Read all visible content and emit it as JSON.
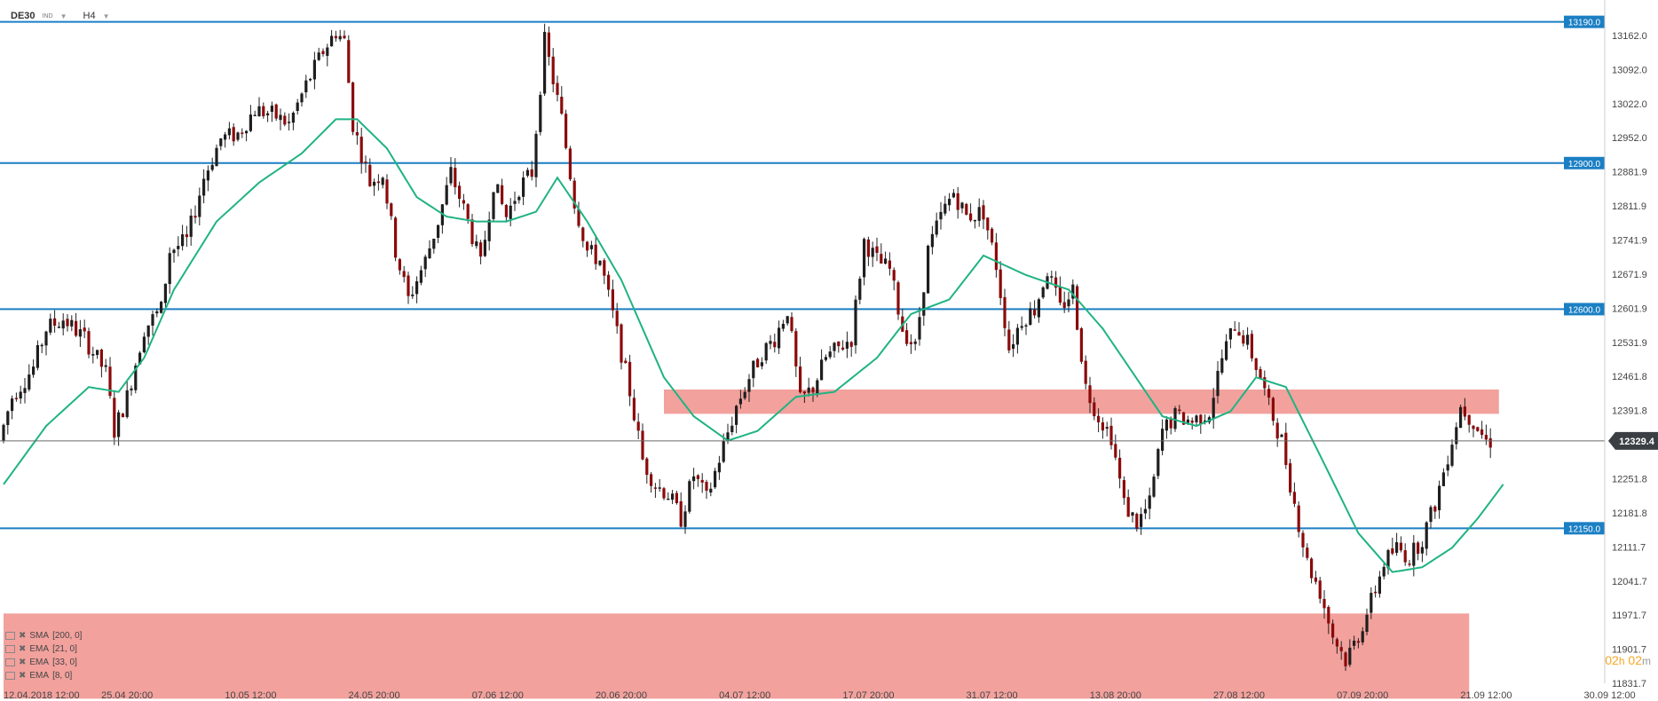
{
  "header": {
    "symbol": "DE30",
    "type": "IND",
    "timeframe": "H4"
  },
  "indicators": [
    {
      "label": "SMA",
      "params": "[200, 0]"
    },
    {
      "label": "EMA",
      "params": "[21, 0]"
    },
    {
      "label": "EMA",
      "params": "[33, 0]"
    },
    {
      "label": "EMA",
      "params": "[8, 0]"
    }
  ],
  "timer": {
    "hours": "02",
    "h": "h",
    "minutes": "02",
    "m": "m"
  },
  "colors": {
    "up": "#1e1e1e",
    "down": "#8b0a0a",
    "ema": "#1fb383",
    "level": "#1b7fc4",
    "zone": "#f0908c",
    "price": "#555555"
  },
  "chart_data": {
    "type": "candlestick",
    "timeframe": "H4",
    "ylim": [
      11796.8,
      13224.0
    ],
    "y_ticks": [
      "13162.0",
      "13092.0",
      "13022.0",
      "12952.0",
      "12881.9",
      "12811.9",
      "12741.9",
      "12671.9",
      "12601.9",
      "12531.9",
      "12461.8",
      "12391.8",
      "12251.8",
      "12181.8",
      "12111.7",
      "12041.7",
      "11971.7",
      "11901.7",
      "11831.7"
    ],
    "x_ticks": [
      {
        "label": "12.04.2018  12:00",
        "i": 0
      },
      {
        "label": "25.04  20:00",
        "i": 29
      },
      {
        "label": "10.05  12:00",
        "i": 58
      },
      {
        "label": "24.05  20:00",
        "i": 87
      },
      {
        "label": "07.06  12:00",
        "i": 116
      },
      {
        "label": "20.06  20:00",
        "i": 145
      },
      {
        "label": "04.07  12:00",
        "i": 174
      },
      {
        "label": "17.07  20:00",
        "i": 203
      },
      {
        "label": "31.07  12:00",
        "i": 232
      },
      {
        "label": "13.08  20:00",
        "i": 261
      },
      {
        "label": "27.08  12:00",
        "i": 290
      },
      {
        "label": "07.09  20:00",
        "i": 319
      },
      {
        "label": "21.09  12:00",
        "i": 348
      },
      {
        "label": "30.09  12:00",
        "i": 377
      }
    ],
    "levels": [
      13190.0,
      12900.0,
      12600.0,
      12150.0
    ],
    "level_labels": [
      "13190.0",
      "12900.0",
      "12600.0",
      "12150.0"
    ],
    "zones": [
      {
        "from": 12385,
        "to": 12435,
        "i_start": 155,
        "i_end": 351
      },
      {
        "from": 11800,
        "to": 11975,
        "i_start": 0,
        "i_end": 344
      }
    ],
    "current_price": 12329.4,
    "current_label": "12329.4",
    "anchors": [
      [
        0,
        12330
      ],
      [
        3,
        12420
      ],
      [
        8,
        12480
      ],
      [
        11,
        12560
      ],
      [
        15,
        12580
      ],
      [
        20,
        12540
      ],
      [
        25,
        12470
      ],
      [
        27,
        12350
      ],
      [
        30,
        12420
      ],
      [
        34,
        12560
      ],
      [
        36,
        12580
      ],
      [
        38,
        12600
      ],
      [
        40,
        12720
      ],
      [
        44,
        12740
      ],
      [
        48,
        12870
      ],
      [
        52,
        12950
      ],
      [
        56,
        12960
      ],
      [
        60,
        13010
      ],
      [
        64,
        13000
      ],
      [
        68,
        12980
      ],
      [
        72,
        13060
      ],
      [
        76,
        13130
      ],
      [
        79,
        13170
      ],
      [
        81,
        13150
      ],
      [
        83,
        12980
      ],
      [
        87,
        12860
      ],
      [
        90,
        12880
      ],
      [
        93,
        12720
      ],
      [
        96,
        12620
      ],
      [
        100,
        12700
      ],
      [
        103,
        12780
      ],
      [
        106,
        12880
      ],
      [
        110,
        12780
      ],
      [
        113,
        12690
      ],
      [
        116,
        12860
      ],
      [
        119,
        12790
      ],
      [
        122,
        12850
      ],
      [
        125,
        12880
      ],
      [
        128,
        13150
      ],
      [
        130,
        13070
      ],
      [
        132,
        12990
      ],
      [
        135,
        12820
      ],
      [
        138,
        12720
      ],
      [
        141,
        12700
      ],
      [
        145,
        12550
      ],
      [
        148,
        12430
      ],
      [
        151,
        12290
      ],
      [
        154,
        12240
      ],
      [
        157,
        12220
      ],
      [
        160,
        12170
      ],
      [
        163,
        12260
      ],
      [
        166,
        12210
      ],
      [
        170,
        12320
      ],
      [
        173,
        12400
      ],
      [
        176,
        12460
      ],
      [
        179,
        12510
      ],
      [
        182,
        12540
      ],
      [
        185,
        12600
      ],
      [
        188,
        12410
      ],
      [
        191,
        12440
      ],
      [
        194,
        12500
      ],
      [
        197,
        12520
      ],
      [
        200,
        12540
      ],
      [
        203,
        12740
      ],
      [
        206,
        12700
      ],
      [
        209,
        12680
      ],
      [
        212,
        12560
      ],
      [
        215,
        12520
      ],
      [
        218,
        12720
      ],
      [
        221,
        12790
      ],
      [
        224,
        12840
      ],
      [
        227,
        12790
      ],
      [
        231,
        12800
      ],
      [
        234,
        12690
      ],
      [
        237,
        12520
      ],
      [
        240,
        12580
      ],
      [
        243,
        12600
      ],
      [
        246,
        12680
      ],
      [
        249,
        12600
      ],
      [
        252,
        12640
      ],
      [
        255,
        12440
      ],
      [
        258,
        12380
      ],
      [
        261,
        12340
      ],
      [
        264,
        12200
      ],
      [
        267,
        12160
      ],
      [
        270,
        12200
      ],
      [
        273,
        12350
      ],
      [
        276,
        12380
      ],
      [
        280,
        12370
      ],
      [
        284,
        12390
      ],
      [
        287,
        12500
      ],
      [
        290,
        12570
      ],
      [
        293,
        12530
      ],
      [
        296,
        12460
      ],
      [
        298,
        12400
      ],
      [
        301,
        12330
      ],
      [
        304,
        12200
      ],
      [
        307,
        12080
      ],
      [
        310,
        12020
      ],
      [
        313,
        11930
      ],
      [
        316,
        11880
      ],
      [
        319,
        11930
      ],
      [
        322,
        12000
      ],
      [
        325,
        12080
      ],
      [
        328,
        12110
      ],
      [
        331,
        12090
      ],
      [
        334,
        12130
      ],
      [
        337,
        12200
      ],
      [
        340,
        12300
      ],
      [
        343,
        12400
      ],
      [
        346,
        12370
      ],
      [
        349,
        12329
      ]
    ],
    "ema": [
      [
        0,
        12240
      ],
      [
        10,
        12360
      ],
      [
        20,
        12440
      ],
      [
        27,
        12430
      ],
      [
        33,
        12500
      ],
      [
        40,
        12640
      ],
      [
        50,
        12780
      ],
      [
        60,
        12860
      ],
      [
        70,
        12920
      ],
      [
        78,
        12990
      ],
      [
        83,
        12990
      ],
      [
        90,
        12930
      ],
      [
        97,
        12830
      ],
      [
        104,
        12790
      ],
      [
        111,
        12780
      ],
      [
        118,
        12780
      ],
      [
        125,
        12800
      ],
      [
        130,
        12870
      ],
      [
        137,
        12780
      ],
      [
        145,
        12660
      ],
      [
        155,
        12460
      ],
      [
        162,
        12380
      ],
      [
        170,
        12330
      ],
      [
        177,
        12350
      ],
      [
        186,
        12420
      ],
      [
        195,
        12430
      ],
      [
        205,
        12500
      ],
      [
        213,
        12590
      ],
      [
        222,
        12620
      ],
      [
        230,
        12710
      ],
      [
        240,
        12670
      ],
      [
        250,
        12640
      ],
      [
        258,
        12560
      ],
      [
        265,
        12470
      ],
      [
        272,
        12380
      ],
      [
        280,
        12360
      ],
      [
        288,
        12390
      ],
      [
        294,
        12460
      ],
      [
        301,
        12440
      ],
      [
        309,
        12300
      ],
      [
        318,
        12140
      ],
      [
        326,
        12060
      ],
      [
        333,
        12070
      ],
      [
        340,
        12110
      ],
      [
        346,
        12170
      ],
      [
        352,
        12240
      ]
    ]
  }
}
